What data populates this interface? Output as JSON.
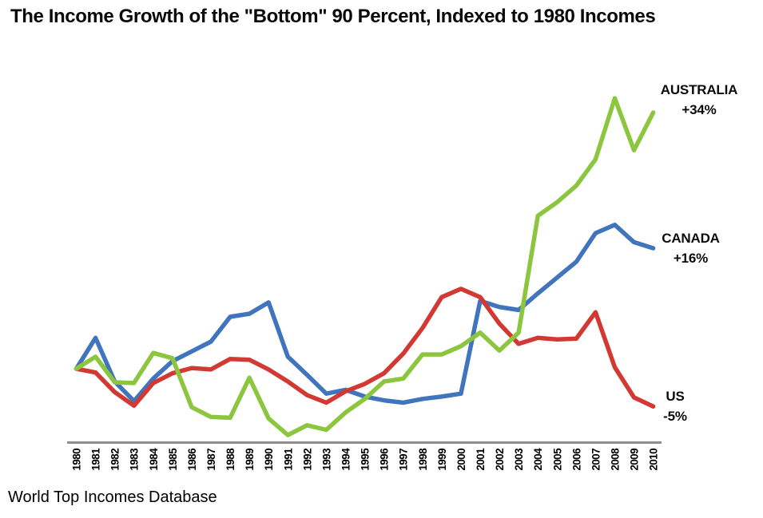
{
  "title": "The Income Growth of the \"Bottom\" 90 Percent, Indexed to 1980 Incomes",
  "source": "World Top Incomes Database",
  "series_labels": [
    {
      "name": "AUSTRALIA",
      "pct": "+34%"
    },
    {
      "name": "CANADA",
      "pct": "+16%"
    },
    {
      "name": "US",
      "pct": "-5%"
    }
  ],
  "chart_data": {
    "type": "line",
    "title": "The Income Growth of the \"Bottom\" 90 Percent, Indexed to 1980 Incomes",
    "source": "World Top Incomes Database",
    "x": [
      1980,
      1981,
      1982,
      1983,
      1984,
      1985,
      1986,
      1987,
      1988,
      1989,
      1990,
      1991,
      1992,
      1993,
      1994,
      1995,
      1996,
      1997,
      1998,
      1999,
      2000,
      2001,
      2002,
      2003,
      2004,
      2005,
      2006,
      2007,
      2008,
      2009,
      2010
    ],
    "xlabel": "",
    "ylabel": "",
    "baseline_index": 100,
    "ylim": [
      88,
      140
    ],
    "grid": false,
    "legend_position": "right-annotations",
    "axis_color": "#8f8f8f",
    "series": [
      {
        "name": "CANADA",
        "end_label": "+16%",
        "color": "#4075BD",
        "values": [
          100,
          104.1,
          98.3,
          95.7,
          98.7,
          101.0,
          102.3,
          103.6,
          106.9,
          107.3,
          108.8,
          101.6,
          99.2,
          96.7,
          97.2,
          96.3,
          95.8,
          95.5,
          96.0,
          96.3,
          96.7,
          109.0,
          108.2,
          107.8,
          110.0,
          112.1,
          114.2,
          118.0,
          119.1,
          116.8,
          116.0
        ]
      },
      {
        "name": "US",
        "end_label": "-5%",
        "color": "#D23933",
        "values": [
          100,
          99.5,
          96.9,
          95.1,
          98.1,
          99.4,
          100.1,
          99.9,
          101.3,
          101.2,
          99.9,
          98.3,
          96.5,
          95.5,
          97.0,
          98.0,
          99.4,
          102.0,
          105.4,
          109.5,
          110.6,
          109.5,
          106.0,
          103.3,
          104.1,
          103.9,
          104.0,
          107.5,
          100.2,
          96.2,
          95.0
        ]
      },
      {
        "name": "AUSTRALIA",
        "end_label": "+34%",
        "color": "#8CC63F",
        "values": [
          100,
          101.6,
          98.2,
          98.1,
          102.1,
          101.4,
          94.9,
          93.6,
          93.5,
          98.8,
          93.4,
          91.2,
          92.5,
          91.9,
          94.2,
          96.0,
          98.3,
          98.7,
          101.9,
          101.9,
          103.0,
          104.8,
          102.4,
          104.8,
          120.3,
          122.1,
          124.3,
          127.8,
          135.9,
          129.0,
          134.0
        ]
      }
    ]
  }
}
